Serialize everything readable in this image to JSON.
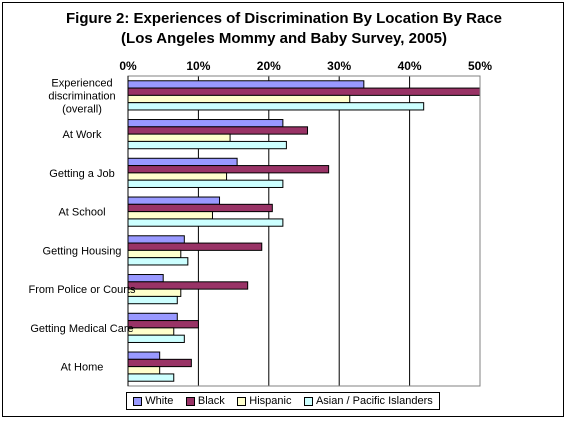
{
  "chart_data": {
    "type": "bar",
    "orientation": "horizontal",
    "title": "Figure 2: Experiences of Discrimination By Location By Race",
    "subtitle": "(Los Angeles Mommy and Baby Survey, 2005)",
    "categories": [
      "Experienced discrimination (overall)",
      "At Work",
      "Getting a Job",
      "At School",
      "Getting Housing",
      "From Police or Courts",
      "Getting Medical Care",
      "At Home"
    ],
    "category_label_lines": [
      [
        "Experienced",
        "discrimination",
        "(overall)"
      ],
      [
        "At Work"
      ],
      [
        "Getting a Job"
      ],
      [
        "At School"
      ],
      [
        "Getting Housing"
      ],
      [
        "From Police or Courts"
      ],
      [
        "Getting Medical Care"
      ],
      [
        "At Home"
      ]
    ],
    "series": [
      {
        "name": "White",
        "color": "#9999ff",
        "values": [
          33.5,
          22,
          15.5,
          13,
          8,
          5,
          7,
          4.5
        ]
      },
      {
        "name": "Black",
        "color": "#993366",
        "values": [
          50,
          25.5,
          28.5,
          20.5,
          19,
          17,
          10,
          9
        ]
      },
      {
        "name": "Hispanic",
        "color": "#ffffcc",
        "values": [
          31.5,
          14.5,
          14,
          12,
          7.5,
          7.5,
          6.5,
          4.5
        ]
      },
      {
        "name": "Asian / Pacific Islanders",
        "color": "#ccffff",
        "values": [
          42,
          22.5,
          22,
          22,
          8.5,
          7,
          8,
          6.5
        ]
      }
    ],
    "x_ticks": [
      "0%",
      "10%",
      "20%",
      "30%",
      "40%",
      "50%"
    ],
    "xlim": [
      0,
      50
    ],
    "x_unit": "%",
    "grid": true,
    "tick_axis_position": "top",
    "legend_position": "bottom"
  }
}
